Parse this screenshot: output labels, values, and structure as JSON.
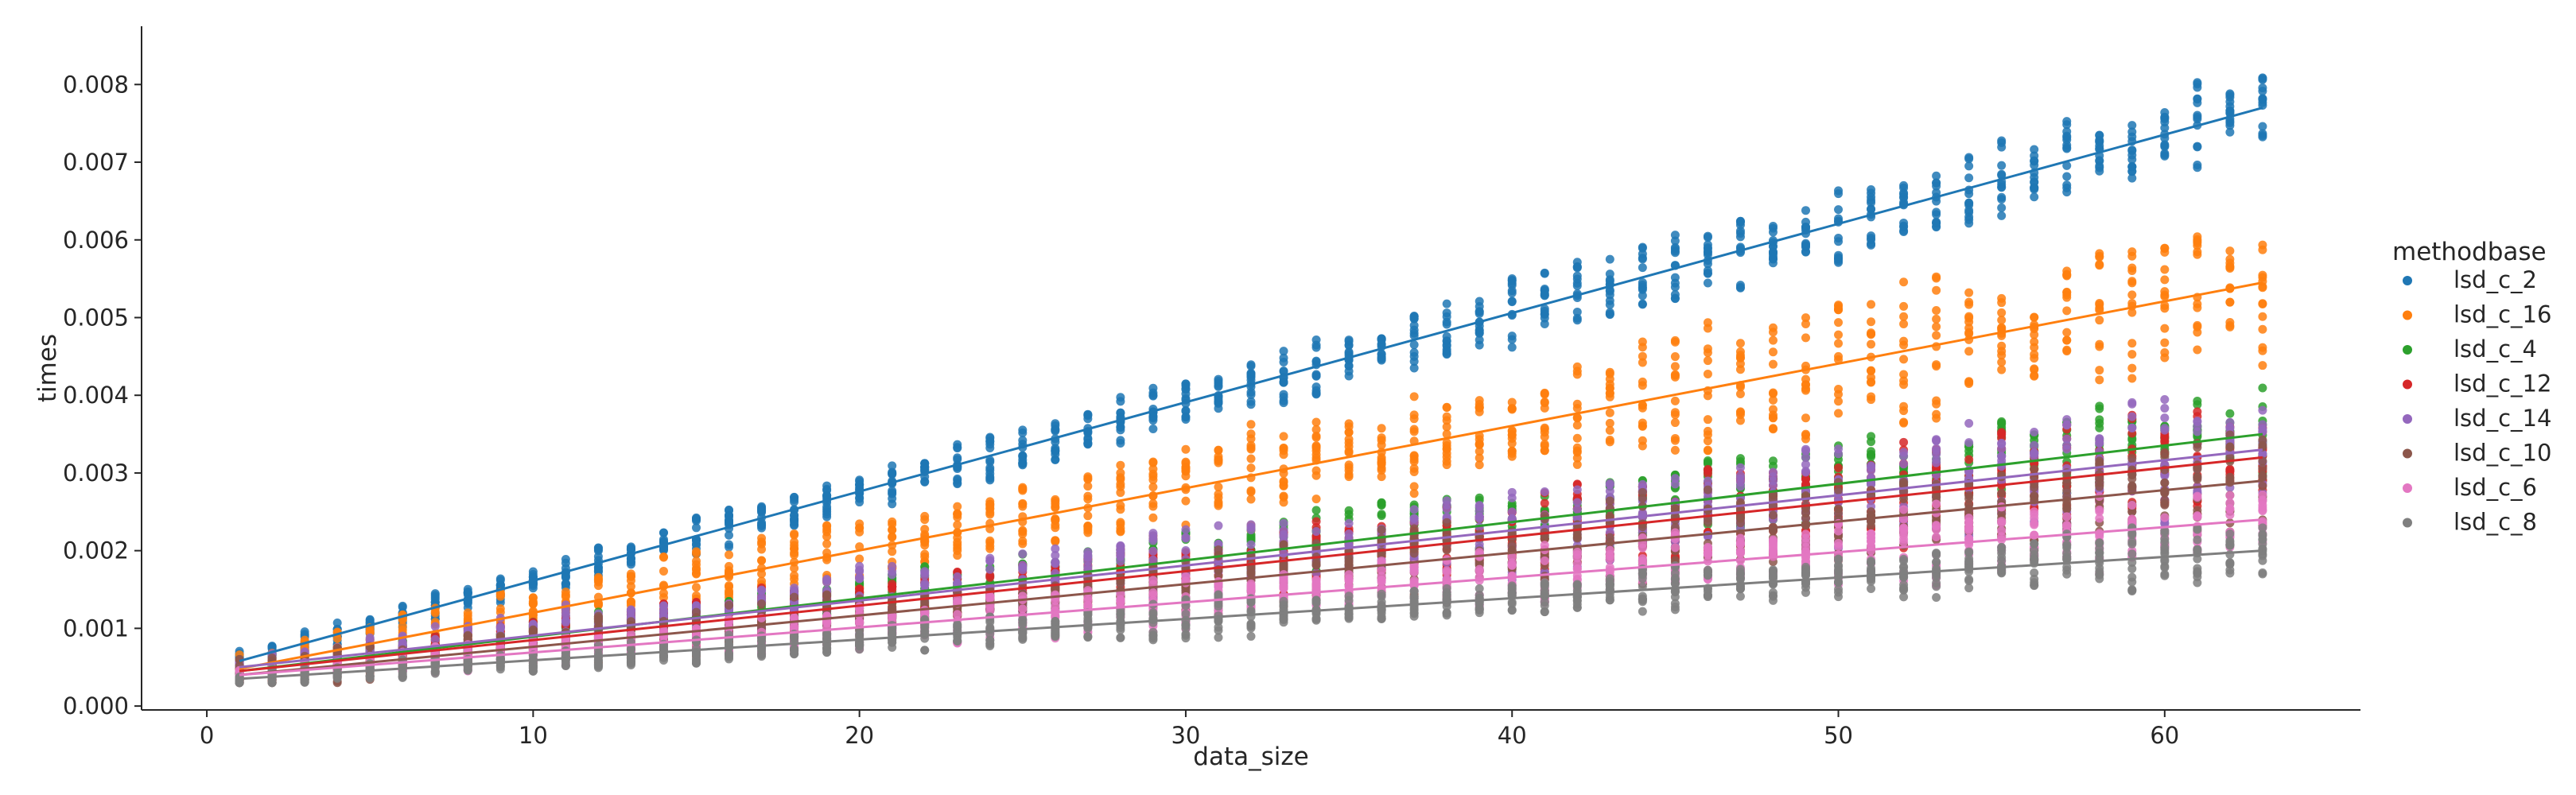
{
  "chart_data": {
    "type": "scatter",
    "xlabel": "data_size",
    "ylabel": "times",
    "xlim": [
      -2,
      66
    ],
    "ylim": [
      -5e-05,
      0.00875
    ],
    "x_ticks": [
      "0",
      "10",
      "20",
      "30",
      "40",
      "50",
      "60"
    ],
    "x_tick_values": [
      0,
      10,
      20,
      30,
      40,
      50,
      60
    ],
    "y_ticks": [
      "0.000",
      "0.001",
      "0.002",
      "0.003",
      "0.004",
      "0.005",
      "0.006",
      "0.007",
      "0.008"
    ],
    "y_tick_values": [
      0,
      0.001,
      0.002,
      0.003,
      0.004,
      0.005,
      0.006,
      0.007,
      0.008
    ],
    "grid": false,
    "legend": {
      "title": "methodbase",
      "placement": "right"
    },
    "x_range": [
      1,
      63
    ],
    "series": [
      {
        "name": "lsd_c_2",
        "color": "#1f77b4",
        "fit_start": 0.00058,
        "fit_end": 0.0077,
        "spread": 0.00045
      },
      {
        "name": "lsd_c_16",
        "color": "#ff7f0e",
        "fit_start": 0.00048,
        "fit_end": 0.00545,
        "spread": 0.00085
      },
      {
        "name": "lsd_c_4",
        "color": "#2ca02c",
        "fit_start": 0.00045,
        "fit_end": 0.0035,
        "spread": 0.0005
      },
      {
        "name": "lsd_c_12",
        "color": "#d62728",
        "fit_start": 0.00045,
        "fit_end": 0.0032,
        "spread": 0.0006
      },
      {
        "name": "lsd_c_14",
        "color": "#9467bd",
        "fit_start": 0.0005,
        "fit_end": 0.0033,
        "spread": 0.0007
      },
      {
        "name": "lsd_c_10",
        "color": "#8c564b",
        "fit_start": 0.0004,
        "fit_end": 0.0029,
        "spread": 0.0006
      },
      {
        "name": "lsd_c_6",
        "color": "#e377c2",
        "fit_start": 0.0004,
        "fit_end": 0.0024,
        "spread": 0.00045
      },
      {
        "name": "lsd_c_8",
        "color": "#7f7f7f",
        "fit_start": 0.00035,
        "fit_end": 0.002,
        "spread": 0.00035
      }
    ]
  }
}
